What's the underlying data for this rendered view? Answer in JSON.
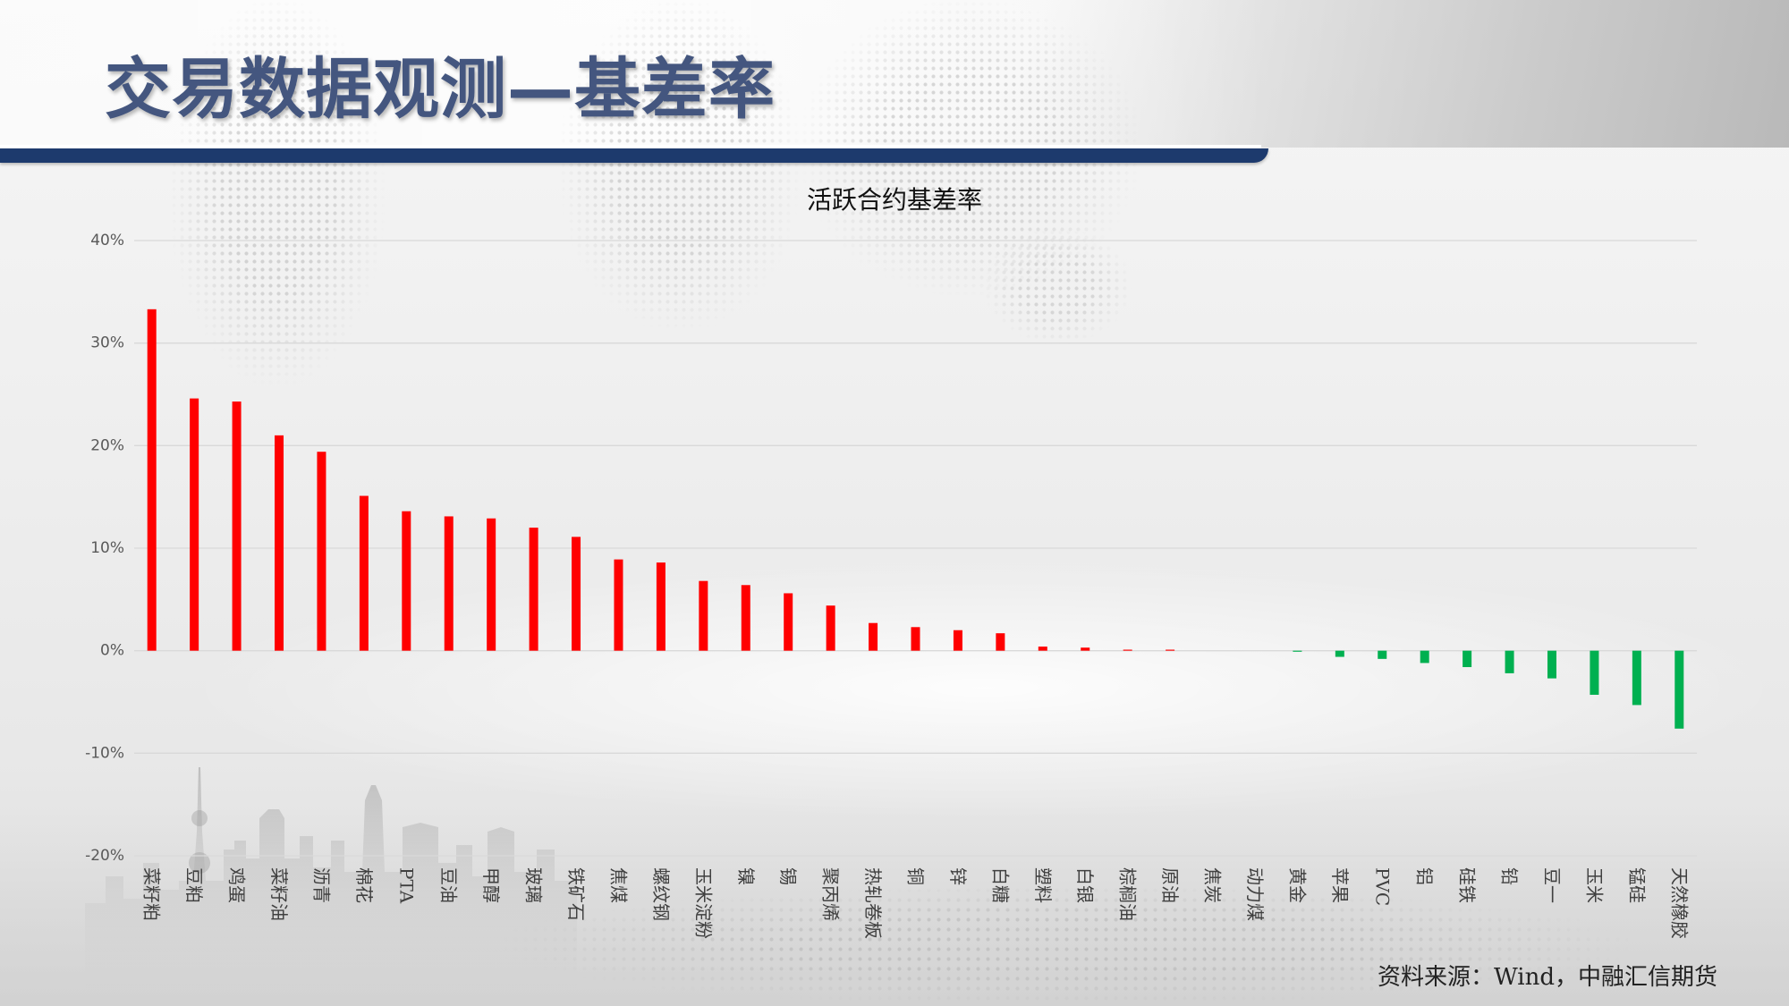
{
  "page": {
    "title": "交易数据观测—基差率",
    "source": "资料来源：Wind，中融汇信期货"
  },
  "colors": {
    "title": "#44567f",
    "header_band": "#1d3a6d",
    "positive_bar": "#ff0000",
    "negative_bar": "#00b050",
    "gridline": "#d9d9d9"
  },
  "chart_data": {
    "type": "bar",
    "title": "活跃合约基差率",
    "xlabel": "",
    "ylabel": "",
    "ylim": [
      -20,
      40
    ],
    "grid": true,
    "legend": "none",
    "yticks": [
      {
        "value": 40,
        "label": "40%"
      },
      {
        "value": 30,
        "label": "30%"
      },
      {
        "value": 20,
        "label": "20%"
      },
      {
        "value": 10,
        "label": "10%"
      },
      {
        "value": 0,
        "label": "0%"
      },
      {
        "value": -10,
        "label": "-10%"
      },
      {
        "value": -20,
        "label": "-20%"
      }
    ],
    "categories": [
      "菜籽粕",
      "豆粕",
      "鸡蛋",
      "菜籽油",
      "沥青",
      "棉花",
      "PTA",
      "豆油",
      "甲醇",
      "玻璃",
      "铁矿石",
      "焦煤",
      "螺纹钢",
      "玉米淀粉",
      "镍",
      "锡",
      "聚丙烯",
      "热轧卷板",
      "铜",
      "锌",
      "白糖",
      "塑料",
      "白银",
      "棕榈油",
      "原油",
      "焦炭",
      "动力煤",
      "黄金",
      "苹果",
      "PVC",
      "铝",
      "硅铁",
      "铅",
      "豆一",
      "玉米",
      "锰硅",
      "天然橡胶"
    ],
    "values": [
      33.3,
      24.6,
      24.3,
      21.0,
      19.4,
      15.1,
      13.6,
      13.1,
      12.9,
      12.0,
      11.1,
      8.9,
      8.6,
      6.8,
      6.4,
      5.6,
      4.4,
      2.7,
      2.3,
      2.0,
      1.7,
      0.4,
      0.3,
      0.1,
      0.1,
      0.0,
      0.0,
      -0.1,
      -0.6,
      -0.8,
      -1.2,
      -1.6,
      -2.2,
      -2.7,
      -4.3,
      -5.3,
      -7.6
    ]
  }
}
